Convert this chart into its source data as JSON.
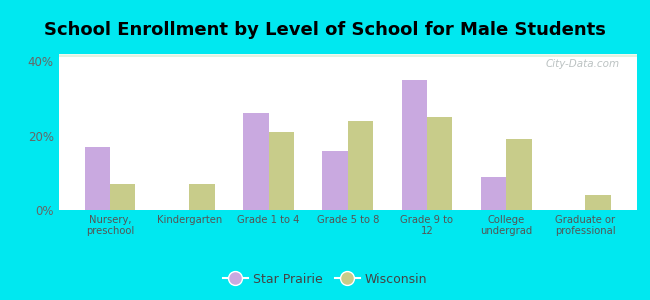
{
  "title": "School Enrollment by Level of School for Male Students",
  "categories": [
    "Nursery,\npreschool",
    "Kindergarten",
    "Grade 1 to 4",
    "Grade 5 to 8",
    "Grade 9 to\n12",
    "College\nundergrad",
    "Graduate or\nprofessional"
  ],
  "star_prairie": [
    17,
    0,
    26,
    16,
    35,
    9,
    0
  ],
  "wisconsin": [
    7,
    7,
    21,
    24,
    25,
    19,
    4
  ],
  "star_prairie_color": "#c9a9e0",
  "wisconsin_color": "#c8cc8a",
  "background_outer": "#00e8f0",
  "ylim": [
    0,
    42
  ],
  "yticks": [
    0,
    20,
    40
  ],
  "ytick_labels": [
    "0%",
    "20%",
    "40%"
  ],
  "legend_star_prairie": "Star Prairie",
  "legend_wisconsin": "Wisconsin",
  "title_fontsize": 13,
  "bar_width": 0.32,
  "watermark": "City-Data.com"
}
